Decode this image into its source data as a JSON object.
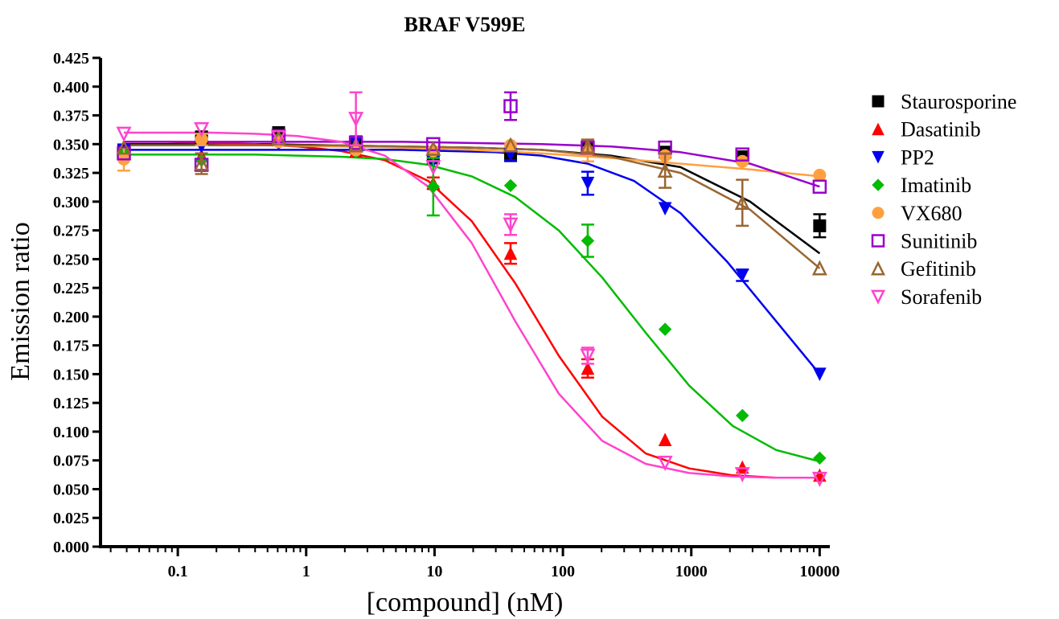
{
  "chart_data": {
    "type": "scatter",
    "title": "BRAF V599E",
    "xlabel": "[compound] (nM)",
    "ylabel": "Emission ratio",
    "x_scale": "log",
    "xlim": [
      0.025,
      12000
    ],
    "ylim": [
      0.0,
      0.425
    ],
    "x_ticks": [
      0.1,
      1,
      10,
      100,
      1000,
      10000
    ],
    "x_tick_labels": [
      "0.1",
      "1",
      "10",
      "100",
      "1000",
      "10000"
    ],
    "y_ticks": [
      0.0,
      0.025,
      0.05,
      0.075,
      0.1,
      0.125,
      0.15,
      0.175,
      0.2,
      0.225,
      0.25,
      0.275,
      0.3,
      0.325,
      0.35,
      0.375,
      0.4,
      0.425
    ],
    "y_tick_labels": [
      "0.000",
      "0.025",
      "0.050",
      "0.075",
      "0.100",
      "0.125",
      "0.150",
      "0.175",
      "0.200",
      "0.225",
      "0.250",
      "0.275",
      "0.300",
      "0.325",
      "0.350",
      "0.375",
      "0.400",
      "0.425"
    ],
    "grid": false,
    "legend_position": "right",
    "x": [
      0.038,
      0.153,
      0.61,
      2.44,
      9.77,
      39.1,
      156,
      625,
      2500,
      10000
    ],
    "series": [
      {
        "name": "Staurosporine",
        "color": "#000000",
        "marker": "square-filled",
        "values": [
          0.345,
          0.356,
          0.36,
          0.35,
          0.338,
          0.34,
          0.349,
          0.343,
          0.339,
          0.279
        ],
        "errors": [
          0.004,
          0.005,
          0.004,
          0.003,
          0.004,
          0.004,
          0.004,
          0.003,
          0.004,
          0.01
        ],
        "curve": [
          0.35,
          0.35,
          0.35,
          0.349,
          0.348,
          0.347,
          0.345,
          0.34,
          0.33,
          0.3,
          0.255
        ]
      },
      {
        "name": "Dasatinib",
        "color": "#ff0000",
        "marker": "triangle-up-filled",
        "values": [
          0.345,
          0.34,
          0.355,
          0.344,
          0.316,
          0.255,
          0.155,
          0.093,
          0.069,
          0.062
        ],
        "errors": [
          0.004,
          0.004,
          0.004,
          0.003,
          0.005,
          0.009,
          0.008,
          0.003,
          0.003,
          0.002
        ],
        "curve": [
          0.352,
          0.352,
          0.351,
          0.35,
          0.348,
          0.344,
          0.336,
          0.318,
          0.283,
          0.229,
          0.166,
          0.113,
          0.081,
          0.068,
          0.062,
          0.06,
          0.06
        ]
      },
      {
        "name": "PP2",
        "color": "#0000ee",
        "marker": "triangle-down-filled",
        "values": [
          0.345,
          0.348,
          0.35,
          0.352,
          0.335,
          0.341,
          0.316,
          0.294,
          0.236,
          0.15
        ],
        "errors": [
          0.004,
          0.004,
          0.004,
          0.003,
          0.004,
          0.005,
          0.01,
          0.003,
          0.005,
          0.003
        ],
        "curve": [
          0.345,
          0.345,
          0.345,
          0.345,
          0.345,
          0.345,
          0.345,
          0.344,
          0.343,
          0.34,
          0.333,
          0.318,
          0.29,
          0.248,
          0.199,
          0.15
        ]
      },
      {
        "name": "Imatinib",
        "color": "#00bb00",
        "marker": "diamond-filled",
        "values": [
          0.342,
          0.336,
          0.355,
          0.343,
          0.313,
          0.314,
          0.266,
          0.189,
          0.114,
          0.077
        ],
        "errors": [
          0.004,
          0.004,
          0.004,
          0.003,
          0.025,
          0.003,
          0.014,
          0.003,
          0.003,
          0.003
        ],
        "curve": [
          0.341,
          0.341,
          0.341,
          0.341,
          0.34,
          0.339,
          0.337,
          0.332,
          0.322,
          0.304,
          0.275,
          0.234,
          0.186,
          0.14,
          0.105,
          0.084,
          0.074
        ]
      },
      {
        "name": "VX680",
        "color": "#ffa040",
        "marker": "circle-filled",
        "values": [
          0.337,
          0.354,
          0.352,
          0.345,
          0.344,
          0.349,
          0.344,
          0.34,
          0.335,
          0.323
        ],
        "errors": [
          0.01,
          0.005,
          0.004,
          0.003,
          0.004,
          0.003,
          0.009,
          0.004,
          0.003,
          0.003
        ],
        "curve": [
          0.349,
          0.349,
          0.349,
          0.348,
          0.347,
          0.345,
          0.342,
          0.338,
          0.333,
          0.328,
          0.322
        ]
      },
      {
        "name": "Sunitinib",
        "color": "#9900cc",
        "marker": "square-open",
        "values": [
          0.342,
          0.332,
          0.357,
          0.351,
          0.35,
          0.383,
          0.347,
          0.347,
          0.341,
          0.313
        ],
        "errors": [
          0.004,
          0.004,
          0.004,
          0.003,
          0.003,
          0.012,
          0.005,
          0.003,
          0.003,
          0.003
        ],
        "curve": [
          0.352,
          0.352,
          0.352,
          0.352,
          0.352,
          0.351,
          0.35,
          0.348,
          0.343,
          0.333,
          0.313
        ]
      },
      {
        "name": "Gefitinib",
        "color": "#996633",
        "marker": "triangle-up-open",
        "values": [
          0.347,
          0.333,
          0.355,
          0.349,
          0.346,
          0.349,
          0.348,
          0.327,
          0.299,
          0.242
        ],
        "errors": [
          0.004,
          0.009,
          0.004,
          0.003,
          0.004,
          0.004,
          0.006,
          0.015,
          0.02,
          0.004
        ],
        "curve": [
          0.349,
          0.349,
          0.349,
          0.349,
          0.348,
          0.347,
          0.345,
          0.339,
          0.325,
          0.293,
          0.242
        ]
      },
      {
        "name": "Sorafenib",
        "color": "#ff44cc",
        "marker": "triangle-down-open",
        "values": [
          0.359,
          0.363,
          0.356,
          0.372,
          0.33,
          0.28,
          0.166,
          0.073,
          0.063,
          0.059
        ],
        "errors": [
          0.004,
          0.004,
          0.004,
          0.023,
          0.004,
          0.009,
          0.007,
          0.003,
          0.003,
          0.003
        ],
        "curve": [
          0.36,
          0.36,
          0.36,
          0.359,
          0.357,
          0.352,
          0.34,
          0.313,
          0.264,
          0.196,
          0.133,
          0.092,
          0.072,
          0.064,
          0.061,
          0.06,
          0.06
        ]
      }
    ]
  }
}
